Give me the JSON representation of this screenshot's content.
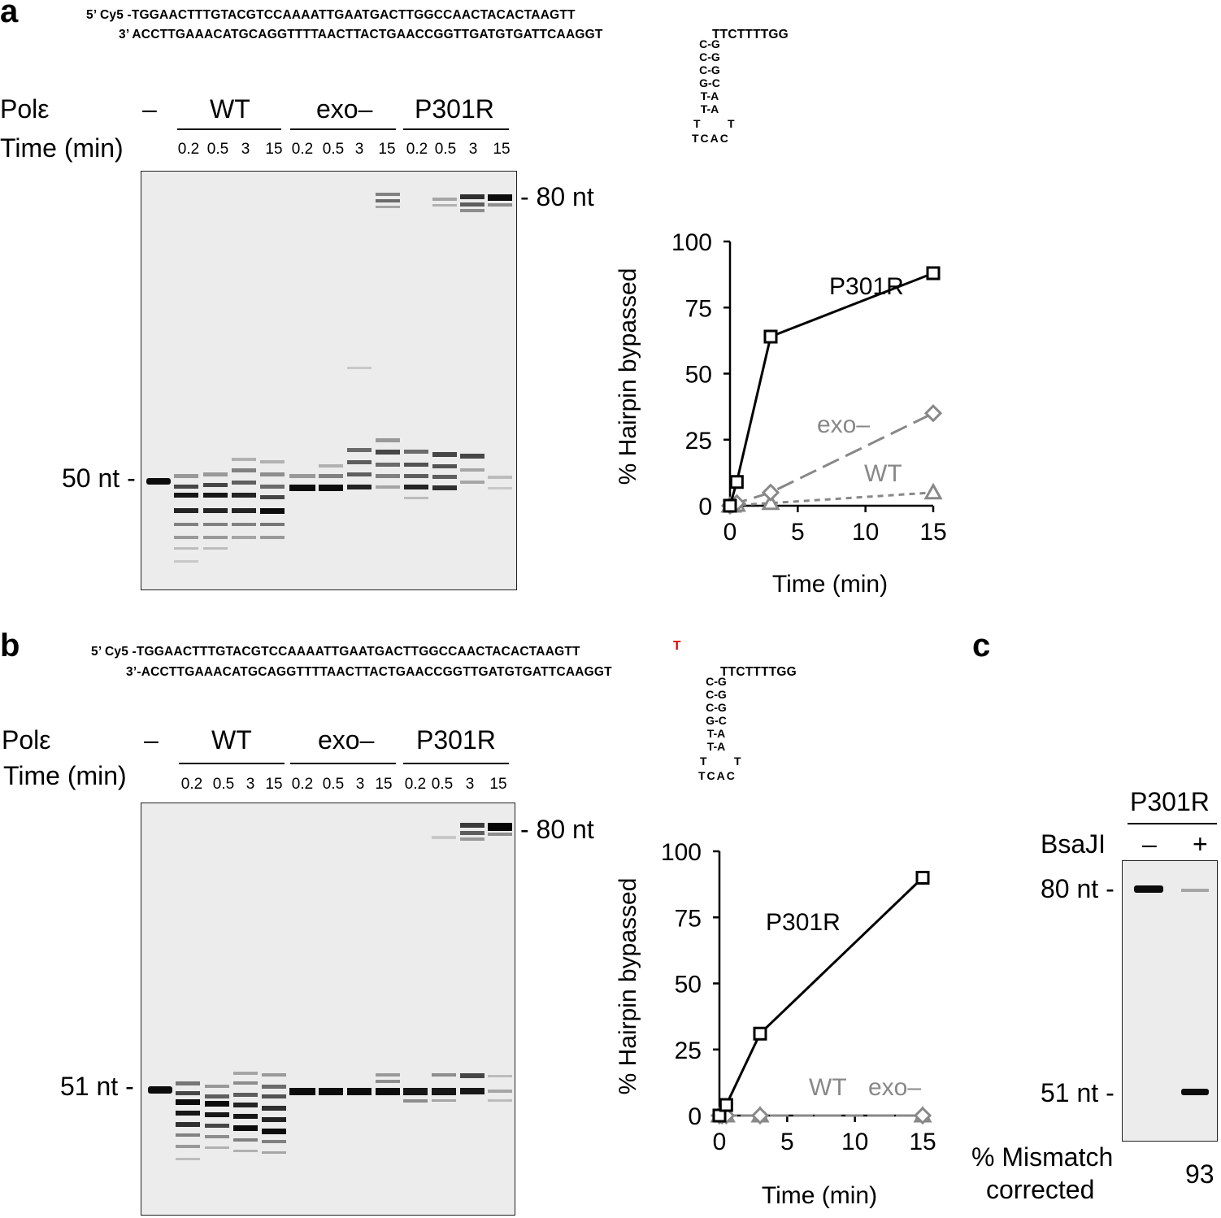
{
  "panels": {
    "a": {
      "label": "a",
      "seq_top": "5’ Cy5 -TGGAACTTTGTACGTCCAAAATTGAATGACTTGGCCAACTACACTAAGTT",
      "seq_bottom": "3’ ACCTTGAAACATGCAGGTTTTAACTTACTGAACCGGTTGATGTGATTCAAGGT",
      "seq_tail": "TTCTTTTGG",
      "hairpin": [
        "C-G",
        "C-G",
        "C-G",
        "G-C",
        "T-A",
        "T-A"
      ],
      "loop": {
        "left": "T",
        "right": "T",
        "bottom": "TCAC"
      },
      "pol_label": "Polε",
      "time_label": "Time (min)",
      "no_enzyme": "–",
      "groups": [
        "WT",
        "exo–",
        "P301R"
      ],
      "times": [
        "0.2",
        "0.5",
        "3",
        "15"
      ],
      "marker_top": "- 80 nt",
      "marker_bottom": "50 nt -"
    },
    "b": {
      "label": "b",
      "seq_top": "5’ Cy5 -TGGAACTTTGTACGTCCAAAATTGAATGACTTGGCCAACTACACTAAGTT",
      "seq_top_extra": "T",
      "seq_bottom": "3’-ACCTTGAAACATGCAGGTTTTAACTTACTGAACCGGTTGATGTGATTCAAGGT",
      "seq_tail": "TTCTTTTGG",
      "hairpin": [
        "C-G",
        "C-G",
        "C-G",
        "G-C",
        "T-A",
        "T-A"
      ],
      "loop": {
        "left": "T",
        "right": "T",
        "bottom": "TCAC"
      },
      "pol_label": "Polε",
      "time_label": "Time (min)",
      "no_enzyme": "–",
      "groups": [
        "WT",
        "exo–",
        "P301R"
      ],
      "times": [
        "0.2",
        "0.5",
        "3",
        "15"
      ],
      "marker_top": "- 80 nt",
      "marker_bottom": "51 nt -"
    },
    "c": {
      "label": "c",
      "enzyme": "P301R",
      "bsaji_label": "BsaJI",
      "minus": "–",
      "plus": "+",
      "marker_top": "80 nt -",
      "marker_bottom": "51 nt -",
      "mismatch_label_1": "% Mismatch",
      "mismatch_label_2": "corrected",
      "mismatch_value": "93"
    }
  },
  "colors": {
    "black": "#000000",
    "gray": "#888888",
    "gel_bg": "#ececec"
  },
  "chart_data": [
    {
      "type": "line",
      "panel": "a",
      "xlabel": "Time (min)",
      "ylabel": "% Hairpin bypassed",
      "xlim": [
        0,
        15
      ],
      "ylim": [
        0,
        100
      ],
      "xticks": [
        0,
        5,
        10,
        15
      ],
      "yticks": [
        0,
        25,
        50,
        75,
        100
      ],
      "series": [
        {
          "name": "P301R",
          "marker": "square",
          "color": "#000000",
          "dash": "solid",
          "x": [
            0,
            0.5,
            3,
            15
          ],
          "y": [
            0,
            9,
            64,
            88
          ]
        },
        {
          "name": "exo–",
          "marker": "diamond",
          "color": "#888888",
          "dash": "long",
          "x": [
            0,
            0.2,
            0.5,
            3,
            15
          ],
          "y": [
            0,
            0.5,
            1,
            5,
            35
          ]
        },
        {
          "name": "WT",
          "marker": "triangle",
          "color": "#888888",
          "dash": "short",
          "x": [
            0,
            0.2,
            0.5,
            3,
            15
          ],
          "y": [
            0,
            0,
            0.3,
            1,
            5
          ]
        }
      ]
    },
    {
      "type": "line",
      "panel": "b",
      "xlabel": "Time (min)",
      "ylabel": "% Hairpin bypassed",
      "xlim": [
        0,
        15
      ],
      "ylim": [
        0,
        100
      ],
      "xticks": [
        0,
        5,
        10,
        15
      ],
      "yticks": [
        0,
        25,
        50,
        75,
        100
      ],
      "series": [
        {
          "name": "P301R",
          "marker": "square",
          "color": "#000000",
          "dash": "solid",
          "x": [
            0,
            0.5,
            3,
            15
          ],
          "y": [
            0,
            4,
            31,
            90
          ]
        },
        {
          "name": "exo–",
          "marker": "diamond",
          "color": "#888888",
          "dash": "long",
          "x": [
            0,
            0.2,
            0.5,
            3,
            15
          ],
          "y": [
            0,
            0,
            0,
            0,
            0
          ]
        },
        {
          "name": "WT",
          "marker": "triangle",
          "color": "#888888",
          "dash": "short",
          "x": [
            0,
            0.2,
            0.5,
            3,
            15
          ],
          "y": [
            0,
            0,
            0,
            0,
            0
          ]
        }
      ]
    }
  ]
}
